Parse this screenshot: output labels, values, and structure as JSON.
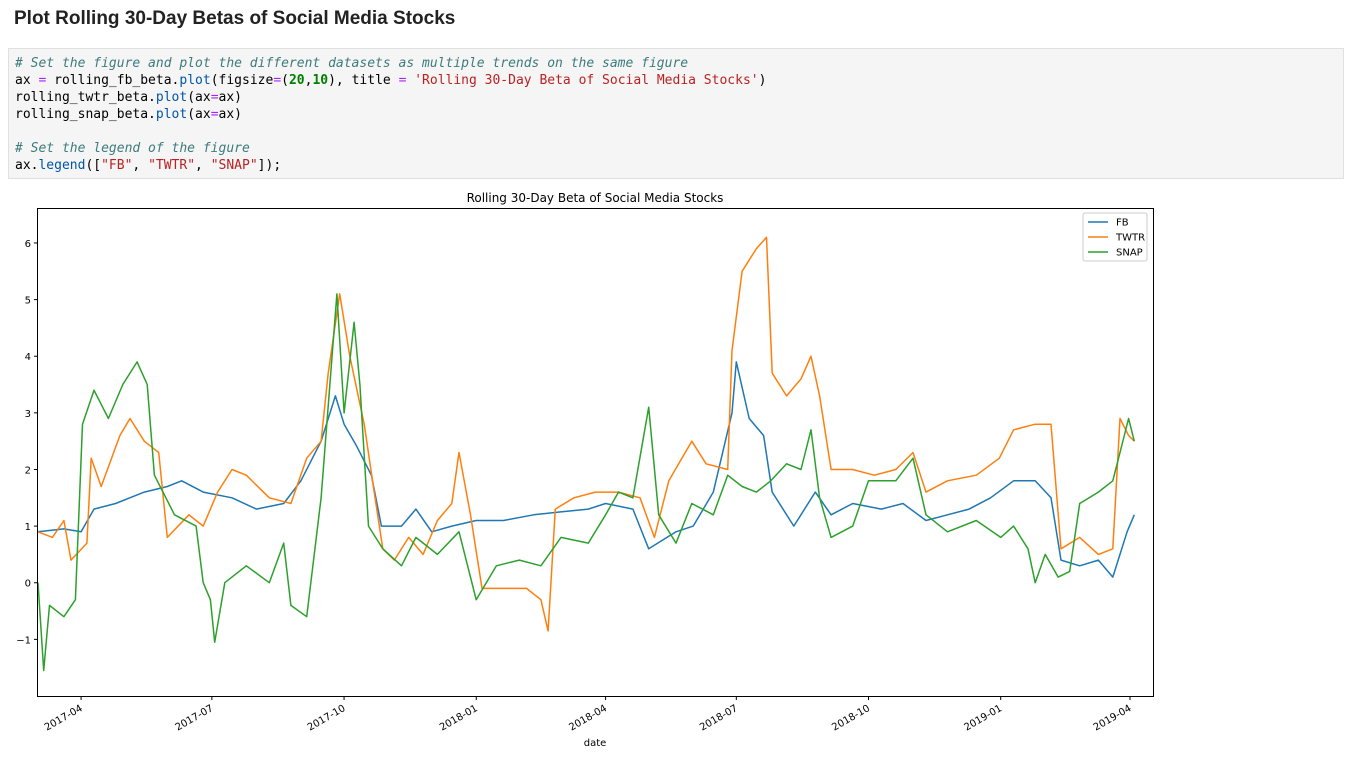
{
  "heading": "Plot Rolling 30-Day Betas of Social Media Stocks",
  "code": {
    "line1_comment": "# Set the figure and plot the different datasets as multiple trends on the same figure",
    "line2": {
      "a": "ax ",
      "eq1": "=",
      "b": " rolling_fb_beta.",
      "plot": "plot",
      "c": "(figsize",
      "eq2": "=",
      "d": "(",
      "n20": "20",
      "e": ",",
      "n10": "10",
      "f": "), title ",
      "eq3": "=",
      "g": " ",
      "str": "'Rolling 30-Day Beta of Social Media Stocks'",
      "h": ")"
    },
    "line3": {
      "a": "rolling_twtr_beta.",
      "plot": "plot",
      "b": "(ax",
      "eq": "=",
      "c": "ax)"
    },
    "line4": {
      "a": "rolling_snap_beta.",
      "plot": "plot",
      "b": "(ax",
      "eq": "=",
      "c": "ax)"
    },
    "line6_comment": "# Set the legend of the figure",
    "line7": {
      "a": "ax.",
      "legend": "legend",
      "b": "([",
      "s1": "\"FB\"",
      "c1": ", ",
      "s2": "\"TWTR\"",
      "c2": ", ",
      "s3": "\"SNAP\"",
      "d": "]);"
    }
  },
  "chart_data": {
    "type": "line",
    "title": "Rolling 30-Day Beta of Social Media Stocks",
    "xlabel": "date",
    "ylabel": "",
    "xlim": [
      "2017-03-02",
      "2019-04-17"
    ],
    "ylim": [
      -2.0,
      6.6
    ],
    "yticks": [
      -1,
      0,
      1,
      2,
      3,
      4,
      5,
      6
    ],
    "xticks": [
      "2017-04",
      "2017-07",
      "2017-10",
      "2018-01",
      "2018-04",
      "2018-07",
      "2018-10",
      "2019-01",
      "2019-04"
    ],
    "legend_position": "top-right",
    "grid": false,
    "series": [
      {
        "name": "FB",
        "color": "#1f77b4",
        "points": [
          [
            "2017-03-02",
            0.9
          ],
          [
            "2017-03-20",
            0.95
          ],
          [
            "2017-04-01",
            0.9
          ],
          [
            "2017-04-10",
            1.3
          ],
          [
            "2017-04-25",
            1.4
          ],
          [
            "2017-05-15",
            1.6
          ],
          [
            "2017-05-31",
            1.7
          ],
          [
            "2017-06-10",
            1.8
          ],
          [
            "2017-06-25",
            1.6
          ],
          [
            "2017-07-15",
            1.5
          ],
          [
            "2017-08-01",
            1.3
          ],
          [
            "2017-08-20",
            1.4
          ],
          [
            "2017-09-01",
            1.8
          ],
          [
            "2017-09-15",
            2.5
          ],
          [
            "2017-09-25",
            3.3
          ],
          [
            "2017-10-01",
            2.8
          ],
          [
            "2017-10-10",
            2.4
          ],
          [
            "2017-10-20",
            1.9
          ],
          [
            "2017-10-27",
            1.0
          ],
          [
            "2017-11-10",
            1.0
          ],
          [
            "2017-11-20",
            1.3
          ],
          [
            "2017-12-01",
            0.9
          ],
          [
            "2017-12-15",
            1.0
          ],
          [
            "2018-01-01",
            1.1
          ],
          [
            "2018-01-20",
            1.1
          ],
          [
            "2018-02-10",
            1.2
          ],
          [
            "2018-02-28",
            1.25
          ],
          [
            "2018-03-20",
            1.3
          ],
          [
            "2018-04-01",
            1.4
          ],
          [
            "2018-04-20",
            1.3
          ],
          [
            "2018-05-01",
            0.6
          ],
          [
            "2018-05-20",
            0.9
          ],
          [
            "2018-06-01",
            1.0
          ],
          [
            "2018-06-15",
            1.6
          ],
          [
            "2018-06-28",
            3.0
          ],
          [
            "2018-07-01",
            3.9
          ],
          [
            "2018-07-10",
            2.9
          ],
          [
            "2018-07-20",
            2.6
          ],
          [
            "2018-07-26",
            1.6
          ],
          [
            "2018-08-10",
            1.0
          ],
          [
            "2018-08-25",
            1.6
          ],
          [
            "2018-09-05",
            1.2
          ],
          [
            "2018-09-20",
            1.4
          ],
          [
            "2018-10-10",
            1.3
          ],
          [
            "2018-10-25",
            1.4
          ],
          [
            "2018-11-10",
            1.1
          ],
          [
            "2018-11-25",
            1.2
          ],
          [
            "2018-12-10",
            1.3
          ],
          [
            "2018-12-25",
            1.5
          ],
          [
            "2019-01-10",
            1.8
          ],
          [
            "2019-01-25",
            1.8
          ],
          [
            "2019-02-05",
            1.5
          ],
          [
            "2019-02-12",
            0.4
          ],
          [
            "2019-02-25",
            0.3
          ],
          [
            "2019-03-10",
            0.4
          ],
          [
            "2019-03-20",
            0.1
          ],
          [
            "2019-03-30",
            0.9
          ],
          [
            "2019-04-04",
            1.2
          ]
        ]
      },
      {
        "name": "TWTR",
        "color": "#ff7f0e",
        "points": [
          [
            "2017-03-02",
            0.9
          ],
          [
            "2017-03-12",
            0.8
          ],
          [
            "2017-03-20",
            1.1
          ],
          [
            "2017-03-25",
            0.4
          ],
          [
            "2017-04-05",
            0.7
          ],
          [
            "2017-04-08",
            2.2
          ],
          [
            "2017-04-15",
            1.7
          ],
          [
            "2017-04-28",
            2.6
          ],
          [
            "2017-05-05",
            2.9
          ],
          [
            "2017-05-15",
            2.5
          ],
          [
            "2017-05-25",
            2.3
          ],
          [
            "2017-05-31",
            0.8
          ],
          [
            "2017-06-15",
            1.2
          ],
          [
            "2017-06-25",
            1.0
          ],
          [
            "2017-07-05",
            1.6
          ],
          [
            "2017-07-15",
            2.0
          ],
          [
            "2017-07-25",
            1.9
          ],
          [
            "2017-08-10",
            1.5
          ],
          [
            "2017-08-25",
            1.4
          ],
          [
            "2017-09-05",
            2.2
          ],
          [
            "2017-09-15",
            2.5
          ],
          [
            "2017-09-20",
            3.7
          ],
          [
            "2017-09-28",
            5.1
          ],
          [
            "2017-10-05",
            4.0
          ],
          [
            "2017-10-15",
            2.8
          ],
          [
            "2017-10-22",
            1.6
          ],
          [
            "2017-10-28",
            0.6
          ],
          [
            "2017-11-05",
            0.4
          ],
          [
            "2017-11-15",
            0.8
          ],
          [
            "2017-11-25",
            0.5
          ],
          [
            "2017-12-05",
            1.1
          ],
          [
            "2017-12-15",
            1.4
          ],
          [
            "2017-12-20",
            2.3
          ],
          [
            "2017-12-28",
            1.2
          ],
          [
            "2018-01-05",
            -0.1
          ],
          [
            "2018-01-20",
            -0.1
          ],
          [
            "2018-02-05",
            -0.1
          ],
          [
            "2018-02-15",
            -0.3
          ],
          [
            "2018-02-20",
            -0.85
          ],
          [
            "2018-02-25",
            1.3
          ],
          [
            "2018-03-10",
            1.5
          ],
          [
            "2018-03-25",
            1.6
          ],
          [
            "2018-04-10",
            1.6
          ],
          [
            "2018-04-25",
            1.5
          ],
          [
            "2018-05-05",
            0.8
          ],
          [
            "2018-05-15",
            1.8
          ],
          [
            "2018-05-31",
            2.5
          ],
          [
            "2018-06-10",
            2.1
          ],
          [
            "2018-06-25",
            2.0
          ],
          [
            "2018-06-28",
            4.1
          ],
          [
            "2018-07-05",
            5.5
          ],
          [
            "2018-07-15",
            5.9
          ],
          [
            "2018-07-22",
            6.1
          ],
          [
            "2018-07-26",
            3.7
          ],
          [
            "2018-08-05",
            3.3
          ],
          [
            "2018-08-15",
            3.6
          ],
          [
            "2018-08-22",
            4.0
          ],
          [
            "2018-08-28",
            3.3
          ],
          [
            "2018-09-05",
            2.0
          ],
          [
            "2018-09-20",
            2.0
          ],
          [
            "2018-10-05",
            1.9
          ],
          [
            "2018-10-20",
            2.0
          ],
          [
            "2018-11-01",
            2.3
          ],
          [
            "2018-11-10",
            1.6
          ],
          [
            "2018-11-25",
            1.8
          ],
          [
            "2018-12-15",
            1.9
          ],
          [
            "2018-12-31",
            2.2
          ],
          [
            "2019-01-10",
            2.7
          ],
          [
            "2019-01-25",
            2.8
          ],
          [
            "2019-02-05",
            2.8
          ],
          [
            "2019-02-12",
            0.6
          ],
          [
            "2019-02-25",
            0.8
          ],
          [
            "2019-03-10",
            0.5
          ],
          [
            "2019-03-20",
            0.6
          ],
          [
            "2019-03-25",
            2.9
          ],
          [
            "2019-03-31",
            2.6
          ],
          [
            "2019-04-04",
            2.5
          ]
        ]
      },
      {
        "name": "SNAP",
        "color": "#2ca02c",
        "points": [
          [
            "2017-03-02",
            0.0
          ],
          [
            "2017-03-06",
            -1.55
          ],
          [
            "2017-03-10",
            -0.4
          ],
          [
            "2017-03-20",
            -0.6
          ],
          [
            "2017-03-28",
            -0.3
          ],
          [
            "2017-04-02",
            2.8
          ],
          [
            "2017-04-10",
            3.4
          ],
          [
            "2017-04-20",
            2.9
          ],
          [
            "2017-04-30",
            3.5
          ],
          [
            "2017-05-10",
            3.9
          ],
          [
            "2017-05-17",
            3.5
          ],
          [
            "2017-05-22",
            1.9
          ],
          [
            "2017-06-05",
            1.2
          ],
          [
            "2017-06-20",
            1.0
          ],
          [
            "2017-06-25",
            0.0
          ],
          [
            "2017-06-30",
            -0.3
          ],
          [
            "2017-07-03",
            -1.05
          ],
          [
            "2017-07-10",
            0.0
          ],
          [
            "2017-07-25",
            0.3
          ],
          [
            "2017-08-10",
            0.0
          ],
          [
            "2017-08-20",
            0.7
          ],
          [
            "2017-08-25",
            -0.4
          ],
          [
            "2017-09-05",
            -0.6
          ],
          [
            "2017-09-15",
            1.5
          ],
          [
            "2017-09-26",
            5.1
          ],
          [
            "2017-10-01",
            3.0
          ],
          [
            "2017-10-08",
            4.6
          ],
          [
            "2017-10-12",
            3.5
          ],
          [
            "2017-10-18",
            1.0
          ],
          [
            "2017-10-28",
            0.6
          ],
          [
            "2017-11-10",
            0.3
          ],
          [
            "2017-11-20",
            0.8
          ],
          [
            "2017-12-05",
            0.5
          ],
          [
            "2017-12-20",
            0.9
          ],
          [
            "2018-01-01",
            -0.3
          ],
          [
            "2018-01-15",
            0.3
          ],
          [
            "2018-01-31",
            0.4
          ],
          [
            "2018-02-15",
            0.3
          ],
          [
            "2018-03-01",
            0.8
          ],
          [
            "2018-03-20",
            0.7
          ],
          [
            "2018-04-01",
            1.2
          ],
          [
            "2018-04-10",
            1.6
          ],
          [
            "2018-04-20",
            1.5
          ],
          [
            "2018-05-01",
            3.1
          ],
          [
            "2018-05-08",
            1.2
          ],
          [
            "2018-05-20",
            0.7
          ],
          [
            "2018-05-31",
            1.4
          ],
          [
            "2018-06-15",
            1.2
          ],
          [
            "2018-06-25",
            1.9
          ],
          [
            "2018-07-05",
            1.7
          ],
          [
            "2018-07-15",
            1.6
          ],
          [
            "2018-07-25",
            1.8
          ],
          [
            "2018-08-05",
            2.1
          ],
          [
            "2018-08-15",
            2.0
          ],
          [
            "2018-08-22",
            2.7
          ],
          [
            "2018-08-28",
            1.5
          ],
          [
            "2018-09-05",
            0.8
          ],
          [
            "2018-09-20",
            1.0
          ],
          [
            "2018-10-01",
            1.8
          ],
          [
            "2018-10-20",
            1.8
          ],
          [
            "2018-11-01",
            2.2
          ],
          [
            "2018-11-10",
            1.2
          ],
          [
            "2018-11-25",
            0.9
          ],
          [
            "2018-12-15",
            1.1
          ],
          [
            "2019-01-01",
            0.8
          ],
          [
            "2019-01-10",
            1.0
          ],
          [
            "2019-01-20",
            0.6
          ],
          [
            "2019-01-25",
            0.0
          ],
          [
            "2019-02-01",
            0.5
          ],
          [
            "2019-02-10",
            0.1
          ],
          [
            "2019-02-18",
            0.2
          ],
          [
            "2019-02-25",
            1.4
          ],
          [
            "2019-03-10",
            1.6
          ],
          [
            "2019-03-20",
            1.8
          ],
          [
            "2019-03-25",
            2.3
          ],
          [
            "2019-03-31",
            2.9
          ],
          [
            "2019-04-04",
            2.5
          ]
        ]
      }
    ]
  }
}
